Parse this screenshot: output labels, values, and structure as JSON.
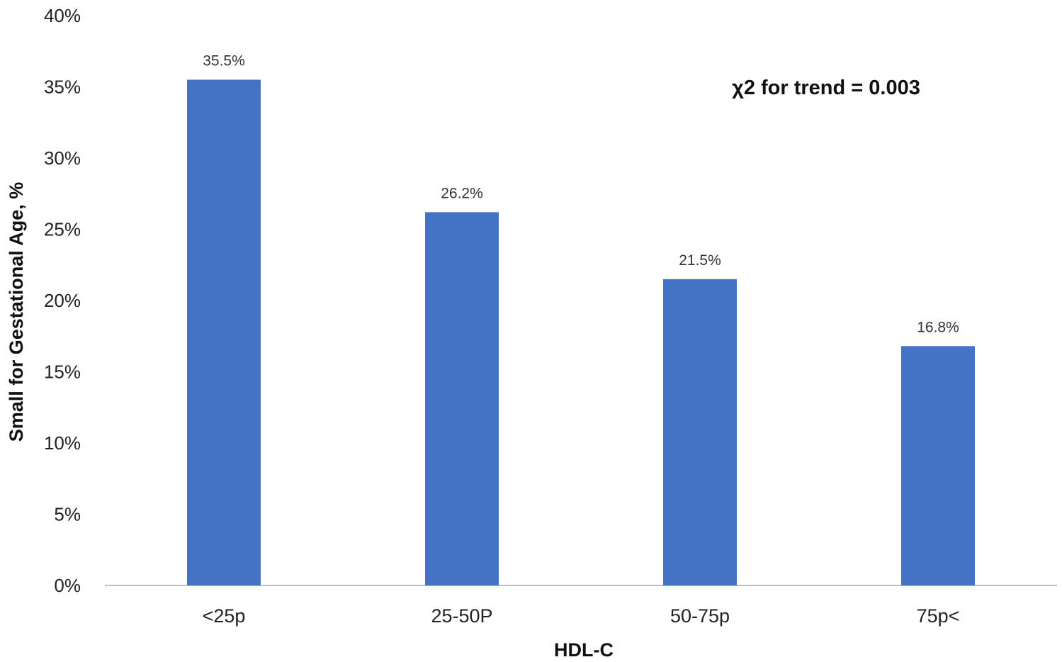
{
  "chart_data": {
    "type": "bar",
    "categories": [
      "<25p",
      "25-50P",
      "50-75p",
      "75p<"
    ],
    "values": [
      35.5,
      26.2,
      21.5,
      16.8
    ],
    "data_labels": [
      "35.5%",
      "26.2%",
      "21.5%",
      "16.8%"
    ],
    "title": "",
    "xlabel": "HDL-C",
    "ylabel": "Small for Gestational Age, %",
    "ylim": [
      0,
      40
    ],
    "yticks": [
      0,
      5,
      10,
      15,
      20,
      25,
      30,
      35,
      40
    ],
    "ytick_labels": [
      "0%",
      "5%",
      "10%",
      "15%",
      "20%",
      "25%",
      "30%",
      "35%",
      "40%"
    ],
    "annotation": "χ2 for trend = 0.003",
    "grid": false,
    "legend": "none",
    "bar_color": "#4472C4",
    "axis_color": "#BFBFBF"
  }
}
